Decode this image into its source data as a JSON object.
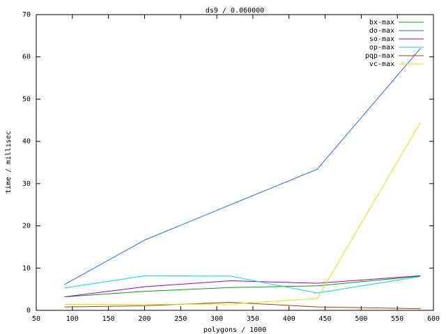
{
  "chart_data": {
    "type": "line",
    "title": "ds9 / 0.060000",
    "x_label": "polygons / 1000",
    "y_label": "time / millisec",
    "x": [
      89,
      201,
      319,
      439,
      582
    ],
    "series": [
      {
        "name": "bx-max",
        "color": "#00a000",
        "values": [
          3.2,
          4.5,
          5.4,
          5.8,
          8.1
        ]
      },
      {
        "name": "do-max",
        "color": "#1f6fd8",
        "values": [
          6.1,
          16.7,
          25,
          33.4,
          62
        ]
      },
      {
        "name": "so-max",
        "color": "#a000c0",
        "values": [
          3.2,
          5.6,
          7,
          6.4,
          8.2
        ]
      },
      {
        "name": "op-max",
        "color": "#00d8e0",
        "values": [
          5.3,
          8.2,
          8.1,
          4.1,
          8.0
        ]
      },
      {
        "name": "pqp-max",
        "color": "#a04000",
        "values": [
          0.8,
          1.1,
          1.9,
          0.8,
          0.4
        ]
      },
      {
        "name": "vc-max",
        "color": "#e8e000",
        "values": [
          1.4,
          1.4,
          1.5,
          2.8,
          44.5
        ]
      }
    ],
    "xlim": [
      50,
      600
    ],
    "xticks": [
      50,
      100,
      150,
      200,
      250,
      300,
      350,
      400,
      450,
      500,
      550,
      600
    ],
    "ylim": [
      0,
      70
    ],
    "yticks": [
      0,
      10,
      20,
      30,
      40,
      50,
      60,
      70
    ],
    "legend": "top-right"
  }
}
